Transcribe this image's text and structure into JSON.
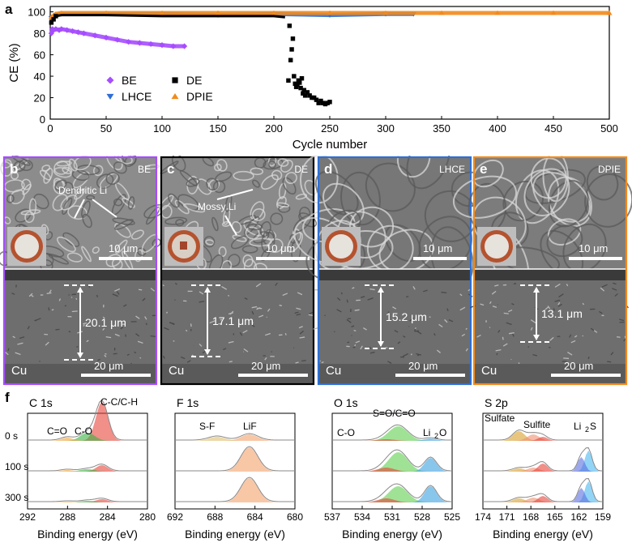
{
  "figure": {
    "panel_labels": {
      "a": "a",
      "b": "b",
      "c": "c",
      "d": "d",
      "e": "e",
      "f": "f"
    }
  },
  "panel_a": {
    "chart_data": {
      "type": "scatter",
      "xlabel": "Cycle number",
      "ylabel": "CE (%)",
      "xlim": [
        0,
        500
      ],
      "ylim": [
        0,
        105
      ],
      "xticks": [
        0,
        50,
        100,
        150,
        200,
        250,
        300,
        350,
        400,
        450,
        500
      ],
      "yticks": [
        0,
        20,
        40,
        60,
        80,
        100
      ],
      "legend": [
        {
          "name": "BE",
          "marker": "diamond",
          "color": "#a64dff"
        },
        {
          "name": "DE",
          "marker": "square",
          "color": "#000000"
        },
        {
          "name": "LHCE",
          "marker": "triangle-down",
          "color": "#2e6fd6"
        },
        {
          "name": "DPIE",
          "marker": "triangle-up",
          "color": "#f28a1c"
        }
      ],
      "series": [
        {
          "name": "BE",
          "x": [
            1,
            2,
            3,
            5,
            8,
            10,
            15,
            20,
            25,
            30,
            40,
            50,
            60,
            70,
            80,
            90,
            100,
            110,
            120
          ],
          "y": [
            80,
            84,
            83,
            84,
            83,
            84,
            83,
            82,
            81,
            80,
            78,
            76,
            74,
            72,
            71,
            70,
            69,
            68,
            68
          ]
        },
        {
          "name": "DE",
          "x": [
            1,
            3,
            5,
            10,
            20,
            50,
            100,
            150,
            180,
            200,
            210,
            213,
            214,
            215,
            216,
            217,
            218,
            219,
            220,
            221,
            222,
            223,
            224,
            225,
            226,
            227,
            228,
            230,
            232,
            234,
            236,
            238,
            240,
            242,
            244,
            246,
            248,
            250
          ],
          "y": [
            90,
            93,
            96,
            97,
            97,
            97,
            96,
            96,
            96,
            96,
            95,
            36,
            87,
            55,
            65,
            75,
            40,
            33,
            30,
            32,
            36,
            34,
            29,
            38,
            24,
            27,
            22,
            25,
            22,
            20,
            20,
            18,
            15,
            17,
            15,
            14,
            15,
            16
          ]
        },
        {
          "name": "LHCE",
          "x": [
            1,
            5,
            10,
            50,
            100,
            150,
            200,
            250,
            300,
            325
          ],
          "y": [
            94,
            97,
            98,
            98,
            98,
            97,
            98,
            97,
            98,
            98
          ]
        },
        {
          "name": "DPIE",
          "x": [
            1,
            5,
            10,
            50,
            100,
            150,
            200,
            250,
            300,
            350,
            400,
            450,
            500
          ],
          "y": [
            95,
            98,
            99,
            99,
            99,
            99,
            99,
            99,
            99,
            99,
            99,
            99,
            99
          ]
        }
      ]
    }
  },
  "sem_panels": {
    "b": {
      "label": "b",
      "tag": "BE",
      "annotation": "Dendritic Li",
      "scale_top": "10 μm",
      "thickness": "20.1 μm",
      "substrate": "Cu",
      "scale_bottom": "20 μm",
      "border": "#a64dff"
    },
    "c": {
      "label": "c",
      "tag": "DE",
      "annotation": "Mossy Li",
      "scale_top": "10 μm",
      "thickness": "17.1 μm",
      "substrate": "Cu",
      "scale_bottom": "20 μm",
      "border": "#000000"
    },
    "d": {
      "label": "d",
      "tag": "LHCE",
      "annotation": "",
      "scale_top": "10 μm",
      "thickness": "15.2 μm",
      "substrate": "Cu",
      "scale_bottom": "20 μm",
      "border": "#2e6fd6"
    },
    "e": {
      "label": "e",
      "tag": "DPIE",
      "annotation": "",
      "scale_top": "10 μm",
      "thickness": "13.1 μm",
      "substrate": "Cu",
      "scale_bottom": "20 μm",
      "border": "#f28a1c"
    }
  },
  "xps": {
    "label": "f",
    "times": [
      "0 s",
      "100 s",
      "300 s"
    ],
    "xlabel": "Binding energy (eV)",
    "panels": [
      {
        "title": "C 1s",
        "ticks": [
          "292",
          "288",
          "284",
          "280"
        ],
        "peaks": [
          "C=O",
          "C-O",
          "C-C/C-H"
        ]
      },
      {
        "title": "F 1s",
        "ticks": [
          "692",
          "688",
          "684",
          "680"
        ],
        "peaks": [
          "S-F",
          "LiF"
        ]
      },
      {
        "title": "O 1s",
        "ticks": [
          "537",
          "534",
          "531",
          "528",
          "525"
        ],
        "peaks": [
          "C-O",
          "S=O/C=O",
          "Li",
          "2",
          "O"
        ]
      },
      {
        "title": "S 2p",
        "ticks": [
          "174",
          "171",
          "168",
          "165",
          "162",
          "159"
        ],
        "peaks": [
          "Sulfate",
          "Sulfite",
          "Li",
          "2",
          "S"
        ]
      }
    ]
  }
}
